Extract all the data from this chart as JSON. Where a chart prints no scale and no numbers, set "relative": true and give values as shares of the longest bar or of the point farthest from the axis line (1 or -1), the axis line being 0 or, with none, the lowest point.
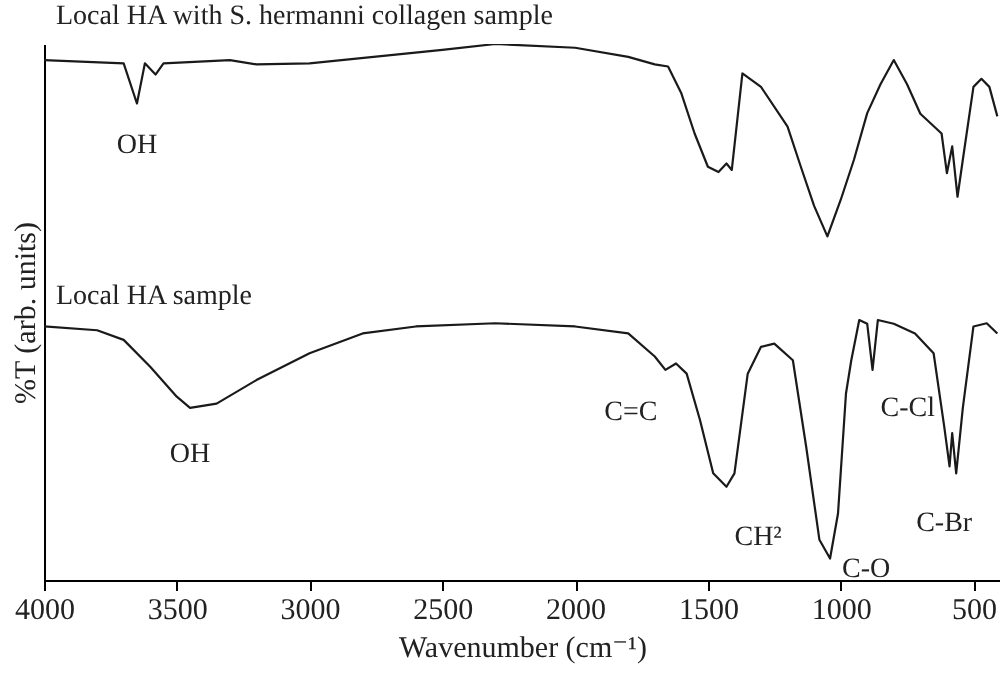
{
  "chart_data": {
    "type": "line",
    "relative": true,
    "xlabel": "Wavenumber (cm⁻¹)",
    "ylabel": "%T (arb. units)",
    "x": [
      4000,
      3700,
      3650,
      3620,
      3580,
      3550,
      3300,
      3200,
      3000,
      2500,
      2300,
      2000,
      1800,
      1700,
      1650,
      1600,
      1550,
      1500,
      1460,
      1430,
      1410,
      1370,
      1300,
      1200,
      1150,
      1100,
      1050,
      1000,
      950,
      900,
      850,
      800,
      750,
      700,
      620,
      600,
      580,
      560,
      540,
      500,
      470,
      440,
      410
    ],
    "series": [
      {
        "name": "Local HA with S. hermanni collagen sample",
        "color": "#1a1a1a",
        "values": [
          0.97,
          0.964,
          0.889,
          0.964,
          0.943,
          0.964,
          0.97,
          0.962,
          0.964,
          0.989,
          1,
          0.993,
          0.976,
          0.962,
          0.958,
          0.908,
          0.833,
          0.771,
          0.761,
          0.777,
          0.765,
          0.945,
          0.92,
          0.846,
          0.771,
          0.698,
          0.641,
          0.709,
          0.784,
          0.871,
          0.925,
          0.97,
          0.925,
          0.87,
          0.833,
          0.759,
          0.809,
          0.715,
          0.784,
          0.92,
          0.935,
          0.92,
          0.865
        ]
      },
      {
        "name": "Local HA sample",
        "color": "#1a1a1a",
        "x": [
          4000,
          3800,
          3700,
          3600,
          3500,
          3450,
          3350,
          3200,
          3000,
          2800,
          2600,
          2300,
          2000,
          1800,
          1700,
          1660,
          1620,
          1580,
          1530,
          1480,
          1430,
          1400,
          1350,
          1300,
          1250,
          1180,
          1130,
          1080,
          1040,
          1010,
          980,
          960,
          930,
          900,
          880,
          860,
          800,
          720,
          650,
          610,
          590,
          580,
          565,
          540,
          500,
          450,
          410
        ],
        "values": [
          0.473,
          0.466,
          0.448,
          0.398,
          0.342,
          0.321,
          0.329,
          0.373,
          0.423,
          0.46,
          0.473,
          0.479,
          0.473,
          0.46,
          0.417,
          0.392,
          0.404,
          0.385,
          0.299,
          0.199,
          0.174,
          0.199,
          0.385,
          0.435,
          0.441,
          0.41,
          0.249,
          0.075,
          0.04,
          0.124,
          0.348,
          0.41,
          0.485,
          0.478,
          0.392,
          0.485,
          0.478,
          0.46,
          0.423,
          0.286,
          0.212,
          0.274,
          0.199,
          0.321,
          0.473,
          0.479,
          0.46
        ]
      }
    ],
    "xlim": [
      4000,
      400
    ],
    "xticks": [
      4000,
      3500,
      3000,
      2500,
      2000,
      1500,
      1000,
      500
    ],
    "annotations": [
      {
        "text": "OH",
        "x": 3650,
        "y": 0.889
      },
      {
        "text": "OH",
        "x": 3450,
        "y": 0.321
      },
      {
        "text": "C=C",
        "x": 1660,
        "y": 0.392
      },
      {
        "text": "CH²",
        "x": 1430,
        "y": 0.174
      },
      {
        "text": "C-O",
        "x": 1040,
        "y": 0.04
      },
      {
        "text": "C-Cl",
        "x": 880,
        "y": 0.392
      },
      {
        "text": "C-Br",
        "x": 565,
        "y": 0.199
      }
    ],
    "grid": false,
    "legend": false
  }
}
